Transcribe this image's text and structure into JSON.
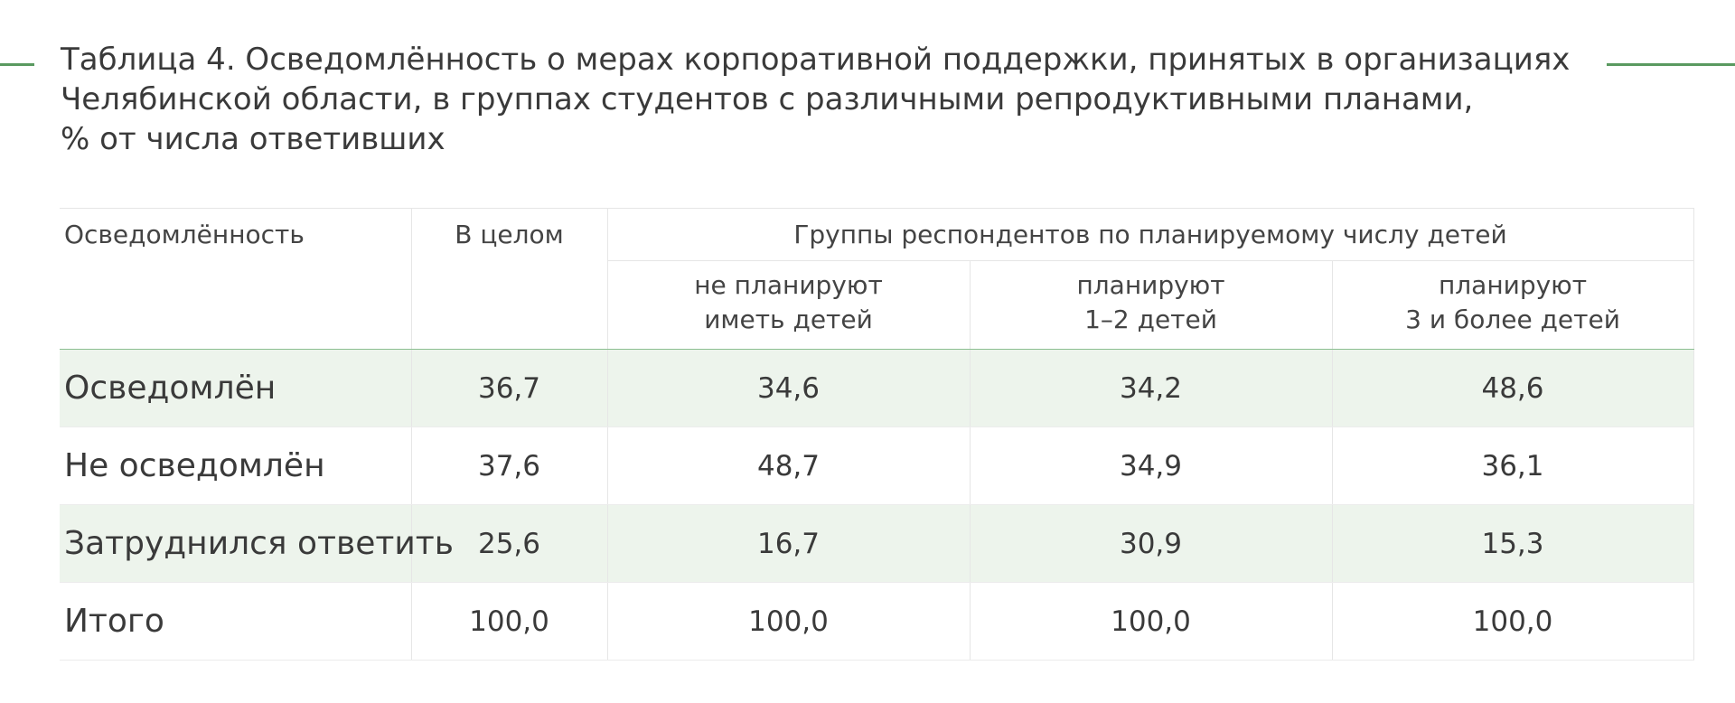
{
  "title": {
    "line1": "Таблица 4. Осведомлённость о мерах корпоративной поддержки, принятых в организациях",
    "line2": "Челябинской области, в группах студентов с различными репродуктивными планами,",
    "line3": "% от числа ответивших"
  },
  "table": {
    "header": {
      "col0": "Осведомлённость",
      "col1": "В целом",
      "group": "Группы респондентов по планируемому числу детей",
      "sub": [
        {
          "line1": "не планируют",
          "line2": "иметь детей"
        },
        {
          "line1": "планируют",
          "line2": "1–2 детей"
        },
        {
          "line1": "планируют",
          "line2": "3 и более детей"
        }
      ]
    },
    "rows": [
      {
        "label": "Осведомлён",
        "values": [
          "36,7",
          "34,6",
          "34,2",
          "48,6"
        ]
      },
      {
        "label": "Не осведомлён",
        "values": [
          "37,6",
          "48,7",
          "34,9",
          "36,1"
        ]
      },
      {
        "label": "Затруднился ответить",
        "values": [
          "25,6",
          "16,7",
          "30,9",
          "15,3"
        ]
      },
      {
        "label": "Итого",
        "values": [
          "100,0",
          "100,0",
          "100,0",
          "100,0"
        ]
      }
    ]
  },
  "colors": {
    "accent_line": "#5a9a60",
    "shaded_row": "#edf4ec"
  }
}
